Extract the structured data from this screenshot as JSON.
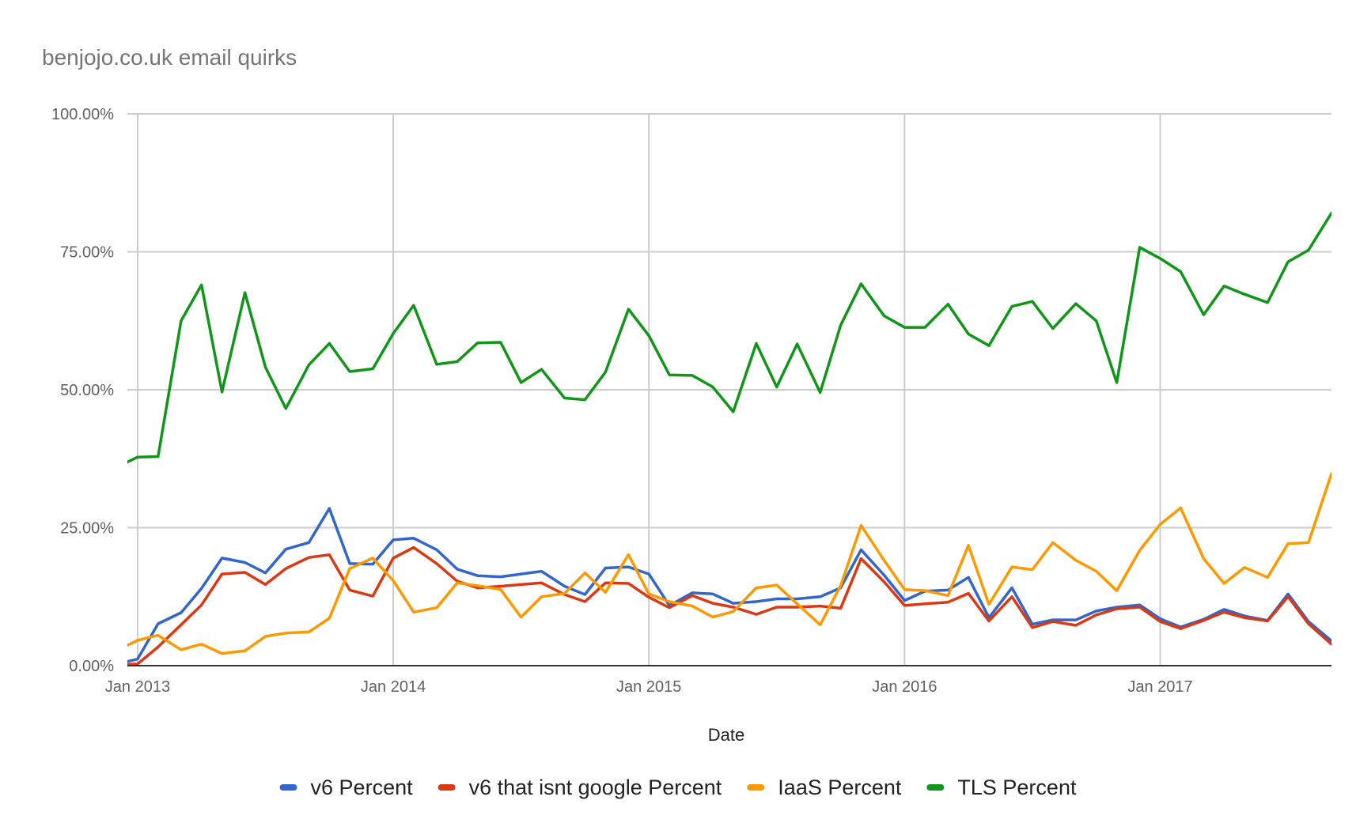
{
  "chart_data": {
    "type": "line",
    "title": "benjojo.co.uk email quirks",
    "xlabel": "Date",
    "ylabel": "",
    "ylim": [
      0,
      100
    ],
    "y_ticks": [
      "0.00%",
      "25.00%",
      "50.00%",
      "75.00%",
      "100.00%"
    ],
    "y_tick_values": [
      0,
      25,
      50,
      75,
      100
    ],
    "x_ticks": [
      "Jan 2013",
      "Jan 2014",
      "Jan 2015",
      "Jan 2016",
      "Jan 2017"
    ],
    "x_tick_values": [
      2013.0,
      2014.0,
      2015.0,
      2016.0,
      2017.0
    ],
    "x_range": [
      2012.96,
      2017.67
    ],
    "grid": true,
    "legend_position": "bottom",
    "x": [
      2012.92,
      2013.0,
      2013.08,
      2013.17,
      2013.25,
      2013.33,
      2013.42,
      2013.5,
      2013.58,
      2013.67,
      2013.75,
      2013.83,
      2013.92,
      2014.0,
      2014.08,
      2014.17,
      2014.25,
      2014.33,
      2014.42,
      2014.5,
      2014.58,
      2014.67,
      2014.75,
      2014.83,
      2014.92,
      2015.0,
      2015.08,
      2015.17,
      2015.25,
      2015.33,
      2015.42,
      2015.5,
      2015.58,
      2015.67,
      2015.75,
      2015.83,
      2015.92,
      2016.0,
      2016.08,
      2016.17,
      2016.25,
      2016.33,
      2016.42,
      2016.5,
      2016.58,
      2016.67,
      2016.75,
      2016.83,
      2016.92,
      2017.0,
      2017.08,
      2017.17,
      2017.25,
      2017.33,
      2017.42,
      2017.5,
      2017.58,
      2017.67
    ],
    "series": [
      {
        "name": "v6 Percent",
        "color": "#3366cc",
        "values": [
          0.3,
          1.2,
          7.6,
          9.6,
          14,
          19.5,
          18.7,
          16.8,
          21.1,
          22.3,
          28.5,
          18.5,
          18.4,
          22.8,
          23.1,
          21,
          17.5,
          16.3,
          16.1,
          16.6,
          17.1,
          14.4,
          12.9,
          17.7,
          17.9,
          16.6,
          10.9,
          13.2,
          13,
          11.3,
          11.6,
          12.1,
          12.1,
          12.5,
          14.1,
          21,
          16.4,
          11.8,
          13.5,
          13.7,
          16,
          8.7,
          14.1,
          7.5,
          8.3,
          8.3,
          9.9,
          10.6,
          11,
          8.5,
          7,
          8.4,
          10.2,
          9,
          8.2,
          13,
          8,
          4.5
        ]
      },
      {
        "name": "v6 that isnt google Percent",
        "color": "#dc3912",
        "values": [
          0.2,
          0.3,
          3.4,
          7.4,
          11,
          16.6,
          16.9,
          14.7,
          17.6,
          19.6,
          20.1,
          13.7,
          12.6,
          19.5,
          21.4,
          18.5,
          15.3,
          14.1,
          14.4,
          14.7,
          15,
          12.9,
          11.6,
          15,
          14.9,
          12.4,
          10.5,
          12.7,
          11.3,
          10.6,
          9.3,
          10.6,
          10.6,
          10.8,
          10.4,
          19.4,
          15.2,
          10.9,
          11.2,
          11.5,
          13.1,
          8.1,
          12.5,
          6.9,
          8,
          7.3,
          9.2,
          10.3,
          10.6,
          8,
          6.7,
          8.2,
          9.7,
          8.7,
          8.1,
          12.5,
          7.6,
          3.9
        ]
      },
      {
        "name": "IaaS Percent",
        "color": "#ff9900",
        "values": [
          2.8,
          4.6,
          5.5,
          2.9,
          3.9,
          2.2,
          2.7,
          5.3,
          5.9,
          6.1,
          8.6,
          17.6,
          19.5,
          15.4,
          9.7,
          10.5,
          15,
          14.5,
          13.8,
          8.8,
          12.5,
          13.1,
          16.8,
          13.3,
          20.1,
          13,
          11.6,
          10.8,
          8.8,
          9.8,
          14.1,
          14.6,
          11.2,
          7.4,
          14.5,
          25.4,
          19.1,
          13.8,
          13.6,
          12.7,
          21.8,
          11.1,
          17.9,
          17.4,
          22.3,
          19.1,
          17.1,
          13.6,
          20.9,
          25.6,
          28.6,
          19.4,
          14.9,
          17.8,
          16,
          22.1,
          22.3,
          34.8
        ]
      },
      {
        "name": "TLS Percent",
        "color": "#109618",
        "values": [
          36,
          37.8,
          37.9,
          62.5,
          69,
          49.6,
          67.6,
          54.1,
          46.6,
          54.5,
          58.4,
          53.3,
          53.8,
          60.2,
          65.3,
          54.6,
          55.1,
          58.5,
          58.6,
          51.3,
          53.7,
          48.5,
          48.2,
          53.2,
          64.6,
          59.8,
          52.7,
          52.6,
          50.5,
          46,
          58.4,
          50.5,
          58.3,
          49.5,
          61.7,
          69.2,
          63.4,
          61.3,
          61.3,
          65.5,
          60.1,
          58,
          65.1,
          66,
          61.1,
          65.6,
          62.5,
          51.3,
          75.8,
          73.8,
          71.4,
          63.6,
          68.8,
          67.3,
          65.8,
          73.2,
          75.3,
          82
        ]
      }
    ]
  }
}
